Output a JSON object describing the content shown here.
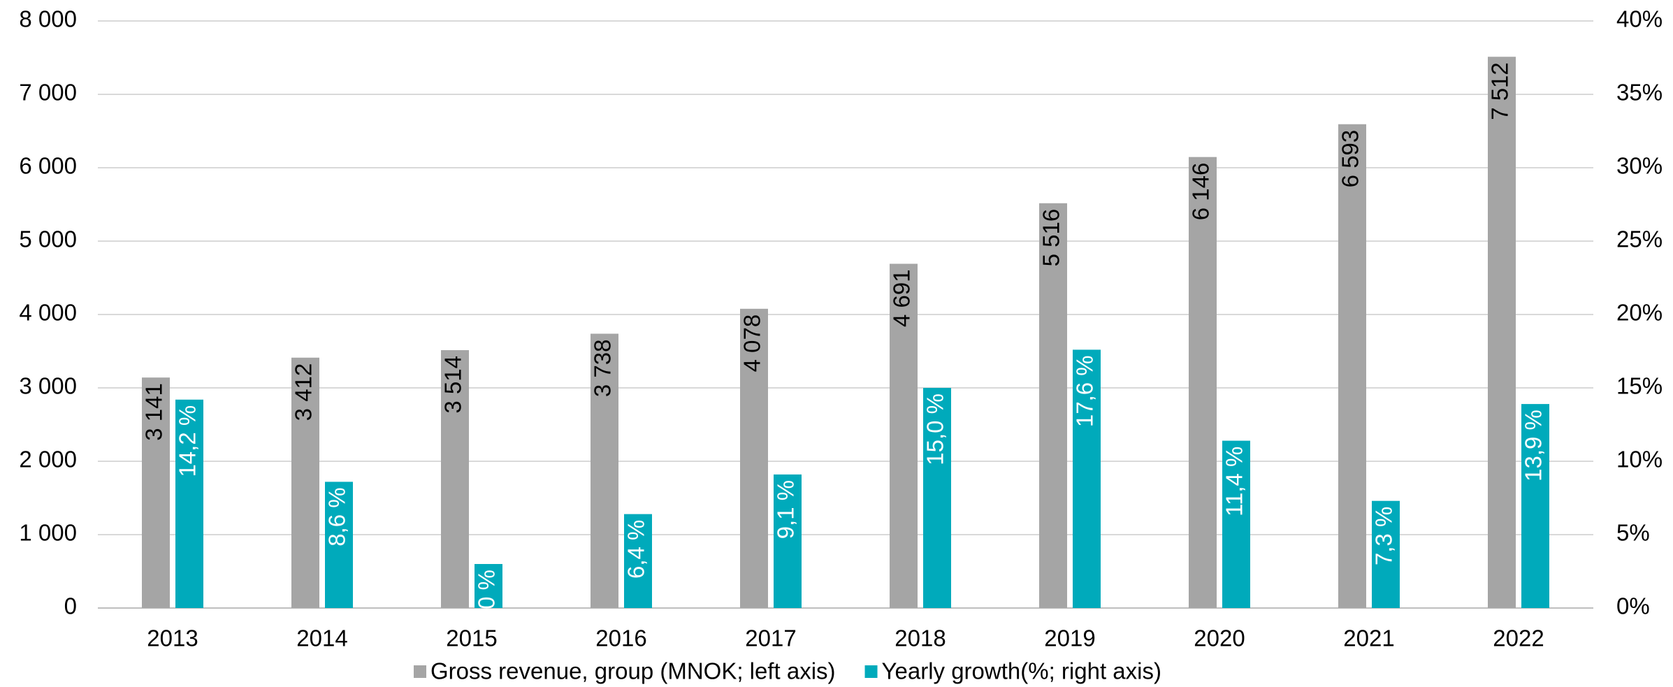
{
  "chart_data": {
    "type": "bar",
    "categories": [
      "2013",
      "2014",
      "2015",
      "2016",
      "2017",
      "2018",
      "2019",
      "2020",
      "2021",
      "2022"
    ],
    "series": [
      {
        "name": "Gross revenue, group (MNOK; left axis)",
        "color": "#a5a5a5",
        "axis": "y",
        "values": [
          3141,
          3412,
          3514,
          3738,
          4078,
          4691,
          5516,
          6146,
          6593,
          7512
        ],
        "value_labels": [
          "3 141",
          "3 412",
          "3 514",
          "3 738",
          "4 078",
          "4 691",
          "5 516",
          "6 146",
          "6 593",
          "7 512"
        ]
      },
      {
        "name": "Yearly growth(%; right axis)",
        "color": "#00aabb",
        "axis": "y2",
        "values": [
          14.2,
          8.6,
          3.0,
          6.4,
          9.1,
          15.0,
          17.6,
          11.4,
          7.3,
          13.9
        ],
        "value_labels": [
          "14,2 %",
          "8,6 %",
          "3,0 %",
          "6,4 %",
          "9,1 %",
          "15,0 %",
          "17,6 %",
          "11,4 %",
          "7,3 %",
          "13,9 %"
        ]
      }
    ],
    "ylim": [
      0,
      8000
    ],
    "yticks": [
      0,
      {
        "value": 1000,
        "label": "1 000"
      },
      {
        "value": 2000,
        "label": "2 000"
      },
      {
        "value": 3000,
        "label": "3 000"
      },
      {
        "value": 4000,
        "label": "4 000"
      },
      {
        "value": 5000,
        "label": "5 000"
      },
      {
        "value": 6000,
        "label": "6 000"
      },
      {
        "value": 7000,
        "label": "7 000"
      },
      {
        "value": 8000,
        "label": "8 000"
      }
    ],
    "y2lim": [
      0,
      40
    ],
    "y2ticks": [
      {
        "value": 0,
        "label": "0%"
      },
      {
        "value": 5,
        "label": "5%"
      },
      {
        "value": 10,
        "label": "10%"
      },
      {
        "value": 15,
        "label": "15%"
      },
      {
        "value": 20,
        "label": "20%"
      },
      {
        "value": 25,
        "label": "25%"
      },
      {
        "value": 30,
        "label": "30%"
      },
      {
        "value": 35,
        "label": "35%"
      },
      {
        "value": 40,
        "label": "40%"
      }
    ],
    "grid": true,
    "legend": "bottom"
  }
}
